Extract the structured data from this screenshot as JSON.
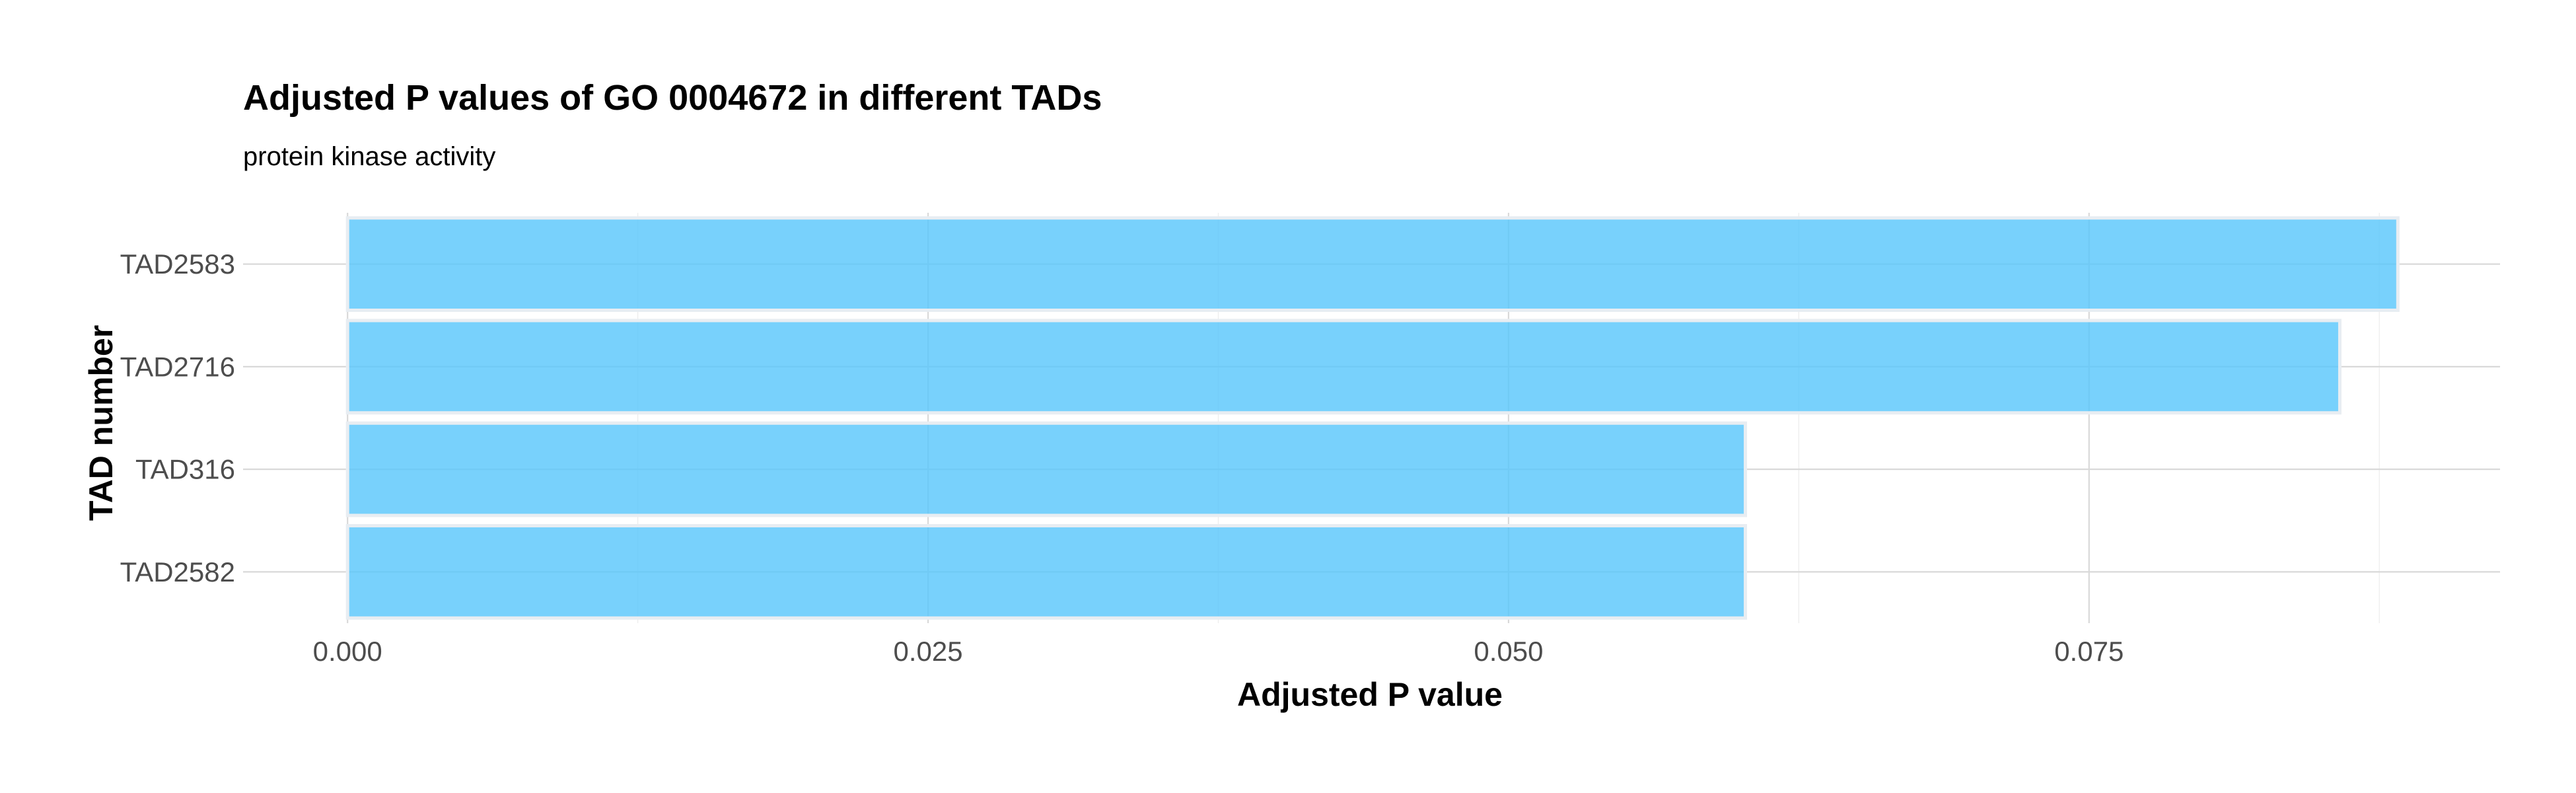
{
  "chart_data": {
    "type": "bar",
    "orientation": "horizontal",
    "title": "Adjusted P values of GO 0004672 in different TADs",
    "subtitle": "protein kinase activity",
    "xlabel": "Adjusted P value",
    "ylabel": "TAD number",
    "categories": [
      "TAD2583",
      "TAD2716",
      "TAD316",
      "TAD2582"
    ],
    "values": [
      0.0883,
      0.0858,
      0.0602,
      0.0602
    ],
    "xlim": [
      -0.0045,
      0.0927
    ],
    "xticks": [
      0.0,
      0.025,
      0.05,
      0.075
    ],
    "xtick_labels": [
      "0.000",
      "0.025",
      "0.050",
      "0.075"
    ],
    "grid": true,
    "legend": "none",
    "bar_color": "#56C5FB",
    "bar_opacity": 0.8,
    "bar_edge_color": "#E8EDF2"
  }
}
